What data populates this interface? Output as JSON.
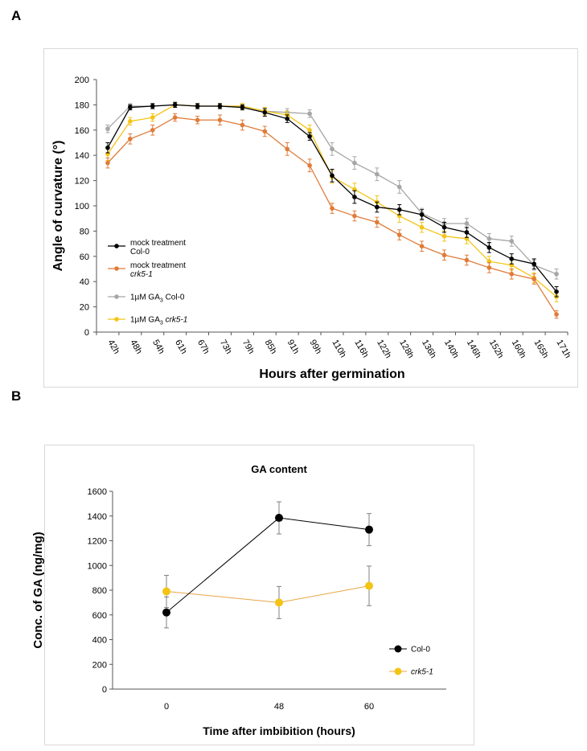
{
  "panels": {
    "a": "A",
    "b": "B"
  },
  "chart_data": [
    {
      "type": "line",
      "title": "",
      "xlabel": "Hours after germination",
      "ylabel": "Angle of curvature (°)",
      "ylim": [
        0,
        200
      ],
      "yticks": [
        0,
        20,
        40,
        60,
        80,
        100,
        120,
        140,
        160,
        180,
        200
      ],
      "categories": [
        "42h",
        "48h",
        "54h",
        "61h",
        "67h",
        "73h",
        "79h",
        "85h",
        "91h",
        "99h",
        "110h",
        "116h",
        "122h",
        "128h",
        "136h",
        "140h",
        "146h",
        "152h",
        "160h",
        "165h",
        "171h"
      ],
      "series": [
        {
          "name": "1µM GA3 Col-0",
          "label_main": "1µM GA",
          "label_sub": "3",
          "label_rest": " Col-0",
          "color": "#a6a6a6",
          "values": [
            161,
            179,
            179,
            180,
            179,
            179,
            179,
            175,
            174,
            173,
            145,
            134,
            125,
            115,
            94,
            86,
            86,
            74,
            72,
            53,
            46
          ],
          "errors": [
            3,
            2,
            2,
            2,
            2,
            2,
            2,
            3,
            3,
            3,
            5,
            5,
            5,
            5,
            4,
            4,
            4,
            4,
            4,
            4,
            4
          ]
        },
        {
          "name": "1µM GA3 crk5-1",
          "label_main": "1µM GA",
          "label_sub": "3",
          "label_rest": " crk5-1",
          "color": "#f4c414",
          "values": [
            141,
            167,
            170,
            180,
            179,
            179,
            179,
            175,
            172,
            160,
            123,
            113,
            103,
            92,
            83,
            76,
            74,
            56,
            53,
            43,
            28
          ],
          "errors": [
            5,
            3,
            3,
            2,
            2,
            2,
            2,
            3,
            3,
            4,
            5,
            5,
            5,
            5,
            4,
            4,
            4,
            4,
            4,
            4,
            4
          ]
        },
        {
          "name": "mock treatment Col-0",
          "label_main": "mock treatment",
          "label_sub": "",
          "label_rest": "Col-0",
          "color": "#000000",
          "values": [
            146,
            178,
            179,
            180,
            179,
            179,
            178,
            174,
            169,
            155,
            124,
            107,
            99,
            97,
            93,
            83,
            79,
            67,
            58,
            54,
            32
          ],
          "errors": [
            4,
            2,
            2,
            2,
            2,
            2,
            2,
            3,
            3,
            3,
            5,
            5,
            4,
            4,
            4,
            4,
            4,
            4,
            4,
            4,
            4
          ]
        },
        {
          "name": "mock treatment crk5-1",
          "label_main": "mock treatment",
          "label_sub": "",
          "label_rest": "crk5-1",
          "color": "#e07b39",
          "values": [
            134,
            153,
            160,
            170,
            168,
            168,
            164,
            159,
            145,
            132,
            98,
            92,
            87,
            77,
            68,
            61,
            57,
            51,
            46,
            42,
            14
          ],
          "errors": [
            4,
            4,
            4,
            3,
            3,
            4,
            4,
            4,
            5,
            5,
            4,
            4,
            4,
            4,
            4,
            4,
            4,
            4,
            4,
            4,
            3
          ]
        }
      ],
      "legend_order": [
        2,
        3,
        0,
        1
      ]
    },
    {
      "type": "line",
      "title": "GA content",
      "xlabel": "Time after imbibition (hours)",
      "ylabel": "Conc. of GA (ng/mg)",
      "ylim": [
        0,
        1600
      ],
      "yticks": [
        0,
        200,
        400,
        600,
        800,
        1000,
        1200,
        1400,
        1600
      ],
      "categories": [
        "0",
        "48",
        "60"
      ],
      "series": [
        {
          "name": "Col-0",
          "color": "#000000",
          "line_color": "#000000",
          "values": [
            620,
            1385,
            1290
          ],
          "errors": [
            125,
            130,
            130
          ]
        },
        {
          "name": "crk5-1",
          "color": "#f4c414",
          "line_color": "#e8a445",
          "values": [
            790,
            700,
            835
          ],
          "errors": [
            130,
            130,
            160
          ]
        }
      ]
    }
  ]
}
